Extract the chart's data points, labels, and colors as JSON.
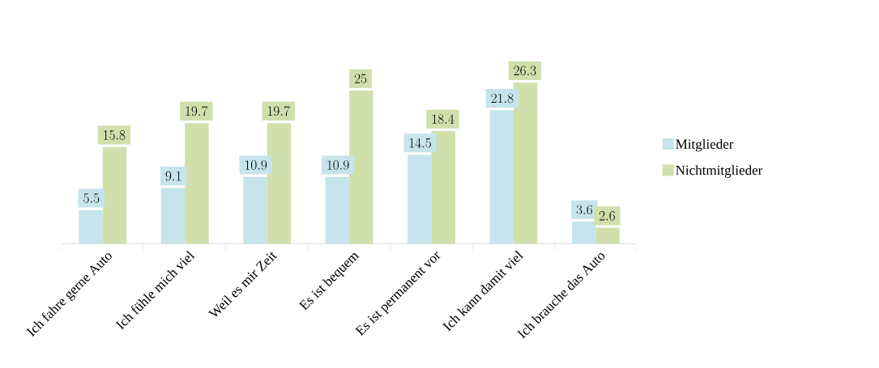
{
  "chart_data": {
    "type": "bar",
    "categories": [
      "Ich fahre gerne Auto",
      "Ich fühle mich viel",
      "Weil es mir Zeit",
      "Es ist bequem",
      "Es ist permanent vor",
      "Ich kann damit viel",
      "Ich brauche das Auto"
    ],
    "series": [
      {
        "name": "Mitglieder",
        "color": "#c5e4ec",
        "values": [
          5.5,
          9.1,
          10.9,
          10.9,
          14.5,
          21.8,
          3.6
        ]
      },
      {
        "name": "Nichtmitglieder",
        "color": "#d0dfac",
        "values": [
          15.8,
          19.7,
          19.7,
          25,
          18.4,
          26.3,
          2.6
        ]
      }
    ],
    "data_labels": true,
    "legend": "right"
  }
}
